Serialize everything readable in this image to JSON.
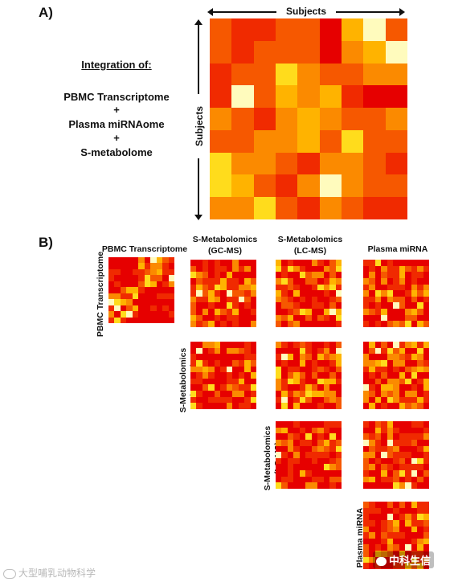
{
  "panel_a": {
    "label": "A)",
    "axis_top": "Subjects",
    "axis_side": "Subjects",
    "integration_title": "Integration of:",
    "items": [
      "PBMC Transcriptome",
      "+",
      "Plasma miRNAome",
      "+",
      "S-metabolome"
    ],
    "matrix": [
      [
        2,
        1,
        1,
        2,
        2,
        0,
        4,
        6,
        2
      ],
      [
        2,
        1,
        2,
        2,
        2,
        0,
        3,
        4,
        6
      ],
      [
        1,
        2,
        2,
        5,
        3,
        2,
        2,
        3,
        3
      ],
      [
        1,
        6,
        2,
        4,
        3,
        4,
        1,
        0,
        0
      ],
      [
        3,
        2,
        1,
        3,
        4,
        3,
        2,
        2,
        3
      ],
      [
        2,
        2,
        3,
        3,
        4,
        2,
        5,
        2,
        2
      ],
      [
        5,
        3,
        3,
        2,
        1,
        3,
        3,
        2,
        1
      ],
      [
        5,
        4,
        2,
        1,
        3,
        6,
        3,
        2,
        2
      ],
      [
        3,
        3,
        5,
        2,
        1,
        3,
        2,
        1,
        1
      ]
    ]
  },
  "panel_b": {
    "label": "B)",
    "col_headers": [
      "PBMC Transcriptome",
      "S-Metabolomics\n(GC-MS)",
      "S-Metabolomics\n(LC-MS)",
      "Plasma miRNA"
    ],
    "row_headers": [
      "PBMC Transcriptome",
      "S-Metabolomics\n(GC-MS)",
      "S-Metabolomics\n(LC-MS)",
      "Plasma miRNA"
    ]
  },
  "colors": {
    "scale": [
      "#e60000",
      "#f02a00",
      "#f65800",
      "#fb8a00",
      "#ffb300",
      "#ffdc1c",
      "#fffbbd"
    ]
  },
  "watermark": {
    "left": "大型哺乳动物科学",
    "right": "中科生信"
  }
}
